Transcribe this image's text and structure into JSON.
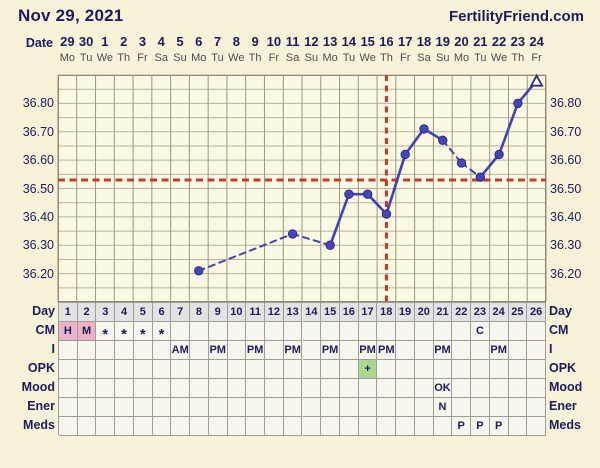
{
  "header": {
    "title": "Nov 29, 2021",
    "brand": "FertilityFriend.com"
  },
  "date_row": {
    "label": "Date",
    "dates": [
      "29",
      "30",
      "1",
      "2",
      "3",
      "4",
      "5",
      "6",
      "7",
      "8",
      "9",
      "10",
      "11",
      "12",
      "13",
      "14",
      "15",
      "16",
      "17",
      "18",
      "19",
      "20",
      "21",
      "22",
      "23",
      "24"
    ],
    "weekdays": [
      "Mo",
      "Tu",
      "We",
      "Th",
      "Fr",
      "Sa",
      "Su",
      "Mo",
      "Tu",
      "We",
      "Th",
      "Fr",
      "Sa",
      "Su",
      "Mo",
      "Tu",
      "We",
      "Th",
      "Fr",
      "Sa",
      "Su",
      "Mo",
      "Tu",
      "We",
      "Th",
      "Fr"
    ]
  },
  "chart_data": {
    "type": "line",
    "y_tick_labels": [
      "36.80",
      "36.70",
      "36.60",
      "36.50",
      "36.40",
      "36.30",
      "36.20"
    ],
    "y_ticks": [
      36.8,
      36.7,
      36.6,
      36.5,
      36.4,
      36.3,
      36.2
    ],
    "ylim": [
      36.1,
      36.9
    ],
    "x_days": [
      1,
      2,
      3,
      4,
      5,
      6,
      7,
      8,
      9,
      10,
      11,
      12,
      13,
      14,
      15,
      16,
      17,
      18,
      19,
      20,
      21,
      22,
      23,
      24,
      25,
      26
    ],
    "horizontal_grid_step": 0.05,
    "coverline_temp": 36.53,
    "vertical_line_day": 18,
    "series": [
      {
        "name": "basal-body-temperature",
        "points": [
          {
            "day": 8,
            "temp": 36.21,
            "link_to_prev": null,
            "marker": "circle"
          },
          {
            "day": 13,
            "temp": 36.34,
            "link_to_prev": "dashed",
            "marker": "circle"
          },
          {
            "day": 15,
            "temp": 36.3,
            "link_to_prev": "dashed",
            "marker": "circle"
          },
          {
            "day": 16,
            "temp": 36.48,
            "link_to_prev": "solid",
            "marker": "circle"
          },
          {
            "day": 17,
            "temp": 36.48,
            "link_to_prev": "solid",
            "marker": "circle"
          },
          {
            "day": 18,
            "temp": 36.41,
            "link_to_prev": "solid",
            "marker": "circle"
          },
          {
            "day": 19,
            "temp": 36.62,
            "link_to_prev": "solid",
            "marker": "circle"
          },
          {
            "day": 20,
            "temp": 36.71,
            "link_to_prev": "solid",
            "marker": "circle"
          },
          {
            "day": 21,
            "temp": 36.67,
            "link_to_prev": "solid",
            "marker": "circle"
          },
          {
            "day": 22,
            "temp": 36.59,
            "link_to_prev": "dashed",
            "marker": "circle"
          },
          {
            "day": 23,
            "temp": 36.54,
            "link_to_prev": "dashed",
            "marker": "circle"
          },
          {
            "day": 24,
            "temp": 36.62,
            "link_to_prev": "solid",
            "marker": "circle"
          },
          {
            "day": 25,
            "temp": 36.8,
            "link_to_prev": "solid",
            "marker": "circle"
          },
          {
            "day": 26,
            "temp": 36.88,
            "link_to_prev": "solid",
            "marker": "open-triangle"
          }
        ]
      }
    ]
  },
  "table": {
    "rows": [
      {
        "label": "Day",
        "type": "day-numbers"
      },
      {
        "label": "CM",
        "cells": {
          "1": "H",
          "2": "M",
          "3": "*",
          "4": "*",
          "5": "*",
          "6": "*",
          "23": "C"
        },
        "bg": {
          "1": "pink",
          "2": "pink"
        }
      },
      {
        "label": "I",
        "cells": {
          "7": "AM",
          "9": "PM",
          "11": "PM",
          "13": "PM",
          "15": "PM",
          "17": "PM",
          "18": "PM",
          "21": "PM",
          "24": "PM"
        }
      },
      {
        "label": "OPK",
        "cells": {
          "17": "+"
        },
        "bg": {
          "17": "green"
        }
      },
      {
        "label": "Mood",
        "cells": {
          "21": "OK"
        }
      },
      {
        "label": "Ener",
        "cells": {
          "21": "N"
        }
      },
      {
        "label": "Meds",
        "cells": {
          "22": "P",
          "23": "P",
          "24": "P"
        }
      }
    ],
    "day_numbers": [
      "1",
      "2",
      "3",
      "4",
      "5",
      "6",
      "7",
      "8",
      "9",
      "10",
      "11",
      "12",
      "13",
      "14",
      "15",
      "16",
      "17",
      "18",
      "19",
      "20",
      "21",
      "22",
      "23",
      "24",
      "25",
      "26"
    ]
  },
  "colors": {
    "page_bg": "#f8f3d8",
    "chart_bg": "#fbf8e3",
    "grid_vertical": "#9a9781",
    "grid_horizontal": "#b5b29a",
    "chart_border": "#8d8a73",
    "line": "#4343b0",
    "point_fill": "#4646b4",
    "point_stroke": "#2a2a86",
    "triangle_fill": "#fffef6",
    "red_dashed": "#c53b2c",
    "text_navy": "#1c1c5e",
    "cell_bg": "#f6f6ee",
    "day_cell_bg": "#e3e3e3",
    "cell_border": "#a09e94",
    "pink": "#eeb2c6",
    "green": "#abd88e"
  }
}
